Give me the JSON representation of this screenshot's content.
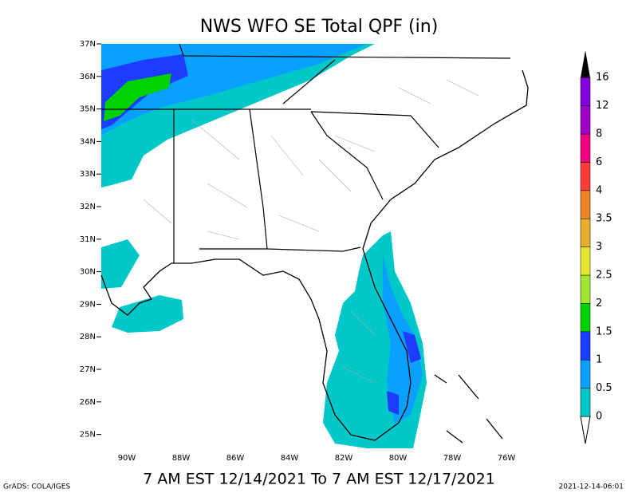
{
  "title": "NWS WFO SE Total QPF (in)",
  "subtitle": "7 AM EST 12/14/2021 To 7 AM EST 12/17/2021",
  "footer_left": "GrADS: COLA/IGES",
  "footer_right": "2021-12-14-06:01",
  "map": {
    "lat_labels": [
      "37N",
      "36N",
      "35N",
      "34N",
      "33N",
      "32N",
      "31N",
      "30N",
      "29N",
      "28N",
      "27N",
      "26N",
      "25N"
    ],
    "lon_labels": [
      "90W",
      "88W",
      "86W",
      "84W",
      "82W",
      "80W",
      "78W",
      "76W"
    ]
  },
  "legend": {
    "levels": [
      0,
      0.5,
      1,
      1.5,
      2,
      2.5,
      3,
      3.5,
      4,
      6,
      8,
      12,
      16
    ],
    "colors": [
      "#00c8c8",
      "#0aa0ff",
      "#1e3cff",
      "#00d200",
      "#a0e632",
      "#e6e632",
      "#e6af2d",
      "#f08228",
      "#fa3c3c",
      "#f00082",
      "#a000c8",
      "#8200dc"
    ],
    "over_color": "#000000"
  }
}
